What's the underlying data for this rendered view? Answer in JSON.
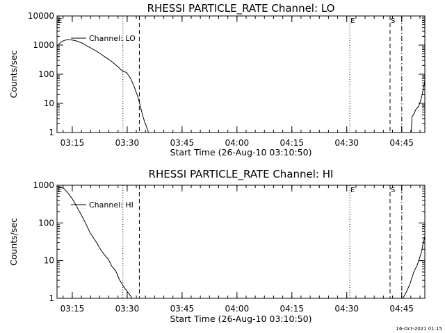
{
  "chart_data": [
    {
      "type": "line",
      "title": "RHESSI PARTICLE_RATE Channel: LO",
      "xlabel": "Start Time (26-Aug-10 03:10:50)",
      "ylabel": "Counts/sec",
      "yscale": "log",
      "ylim": [
        1,
        10000
      ],
      "xlim_minutes": [
        0,
        100.5
      ],
      "y_tick_values": [
        1,
        10,
        100,
        1000,
        10000
      ],
      "y_tick_labels": [
        "1",
        "10",
        "100",
        "1000",
        "10000"
      ],
      "x_tick_minutes": [
        4.17,
        19.17,
        34.17,
        49.17,
        64.17,
        79.17,
        94.17
      ],
      "x_tick_labels": [
        "03:15",
        "03:30",
        "03:45",
        "04:00",
        "04:15",
        "04:30",
        "04:45"
      ],
      "legend": "Channel: LO",
      "legend_position": "top-left",
      "markers": [
        {
          "minute": 18,
          "style": "dotted",
          "label": ""
        },
        {
          "minute": 22.5,
          "style": "dashed",
          "label": ""
        },
        {
          "minute": 80,
          "style": "dotted",
          "label": "E"
        },
        {
          "minute": 91,
          "style": "dashed",
          "label": "S"
        },
        {
          "minute": 94.2,
          "style": "dashdot",
          "label": ""
        }
      ],
      "corner_label": "E",
      "segments": [
        {
          "x": [
            0,
            1,
            2,
            3,
            4,
            5,
            6,
            7,
            8,
            9,
            10,
            11,
            12,
            13,
            14,
            15,
            16,
            17,
            17.5,
            18,
            19,
            20,
            21,
            22,
            22.5,
            23,
            23.5,
            24,
            24.5,
            25
          ],
          "y": [
            900,
            1250,
            1450,
            1550,
            1500,
            1420,
            1300,
            1150,
            960,
            820,
            700,
            590,
            490,
            400,
            330,
            270,
            210,
            165,
            140,
            128,
            115,
            75,
            40,
            18,
            11,
            6,
            3.5,
            2.2,
            1.5,
            1
          ]
        },
        {
          "x": [
            94.2,
            95,
            96,
            96.8,
            97,
            97.6,
            98,
            98.8,
            99.5,
            100,
            100.5
          ],
          "y": [
            1,
            1,
            1,
            1,
            3.5,
            4.5,
            6,
            8,
            14,
            28,
            60
          ]
        }
      ]
    },
    {
      "type": "line",
      "title": "RHESSI PARTICLE_RATE Channel: HI",
      "xlabel": "Start Time (26-Aug-10 03:10:50)",
      "ylabel": "Counts/sec",
      "yscale": "log",
      "ylim": [
        1,
        1000
      ],
      "xlim_minutes": [
        0,
        100.5
      ],
      "y_tick_values": [
        1,
        10,
        100,
        1000
      ],
      "y_tick_labels": [
        "1",
        "10",
        "100",
        "1000"
      ],
      "x_tick_minutes": [
        4.17,
        19.17,
        34.17,
        49.17,
        64.17,
        79.17,
        94.17
      ],
      "x_tick_labels": [
        "03:15",
        "03:30",
        "03:45",
        "04:00",
        "04:15",
        "04:30",
        "04:45"
      ],
      "legend": "Channel: HI",
      "legend_position": "top-left",
      "markers": [
        {
          "minute": 18,
          "style": "dotted",
          "label": ""
        },
        {
          "minute": 22.5,
          "style": "dashed",
          "label": ""
        },
        {
          "minute": 80,
          "style": "dotted",
          "label": "E"
        },
        {
          "minute": 91,
          "style": "dashed",
          "label": "S"
        },
        {
          "minute": 94.2,
          "style": "dashdot",
          "label": ""
        }
      ],
      "corner_label": "E",
      "segments": [
        {
          "x": [
            0,
            1,
            2,
            3,
            4,
            5,
            6,
            7,
            8,
            9,
            10,
            11,
            12,
            13,
            14,
            15,
            16,
            17,
            18,
            19,
            20,
            20.5
          ],
          "y": [
            950,
            900,
            800,
            620,
            460,
            320,
            210,
            140,
            90,
            55,
            40,
            28,
            19,
            14,
            11,
            7,
            5.5,
            3.2,
            2.2,
            1.6,
            1.2,
            1
          ]
        },
        {
          "x": [
            94.5,
            95.5,
            96.5,
            97.5,
            98.5,
            99.5,
            100.5
          ],
          "y": [
            1,
            1.5,
            2.5,
            5,
            8,
            16,
            45
          ]
        }
      ]
    }
  ],
  "timestamp": "16-Oct-2021 01:15"
}
